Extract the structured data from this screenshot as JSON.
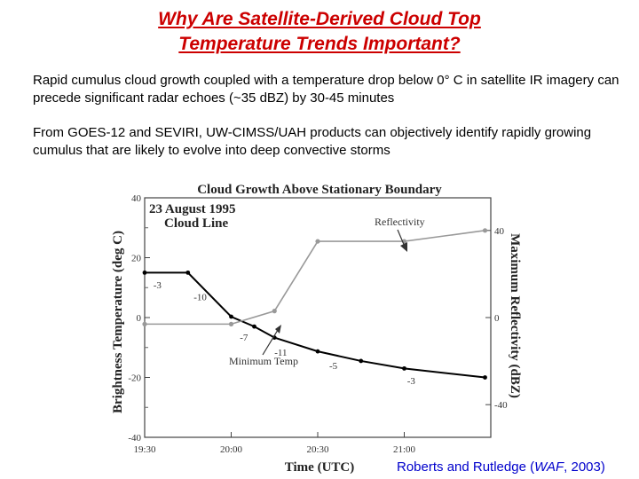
{
  "slide": {
    "title_line1": "Why Are Satellite-Derived Cloud Top",
    "title_line2": "Temperature Trends Important?",
    "paragraph1": "Rapid cumulus cloud growth coupled with a temperature drop below 0° C in satellite IR imagery can precede significant radar echoes (~35 dBZ) by 30-45 minutes",
    "paragraph2": "From GOES-12 and SEVIRI, UW-CIMSS/UAH products can objectively identify rapidly growing cumulus that are likely to evolve into deep convective storms",
    "credit_pre": "Roberts and Rutledge (",
    "credit_journal": "WAF",
    "credit_post": ", 2003)"
  },
  "chart_data": {
    "type": "line",
    "title": "Cloud Growth Above Stationary Boundary",
    "subtitle_date": "23 August 1995",
    "subtitle_case": "Cloud Line",
    "xlabel": "Time (UTC)",
    "ylabel_left": "Brightness Temperature (deg C)",
    "ylabel_right": "Maximum Reflectivity (dBZ)",
    "x_ticks": [
      "19:30",
      "20:00",
      "20:30",
      "21:00"
    ],
    "x_range": [
      "19:30",
      "21:30"
    ],
    "y_left_ticks": [
      40,
      20,
      0,
      -20,
      -40
    ],
    "y_left_range": [
      -40,
      40
    ],
    "y_right_ticks": [
      40,
      0,
      -40
    ],
    "y_right_range": [
      -55,
      55
    ],
    "series": [
      {
        "name": "Minimum Temp",
        "axis": "left",
        "color": "#000000",
        "x": [
          "19:30",
          "19:45",
          "20:00",
          "20:08",
          "20:15",
          "20:30",
          "20:45",
          "21:00",
          "21:28"
        ],
        "values": [
          15,
          15,
          0.3,
          -3,
          -6.7,
          -11.3,
          -14.5,
          -17,
          -20
        ]
      },
      {
        "name": "Reflectivity",
        "axis": "right",
        "color": "#999999",
        "x": [
          "19:30",
          "20:00",
          "20:15",
          "20:30",
          "21:00",
          "21:28"
        ],
        "values": [
          -3,
          -3,
          3,
          35,
          35,
          40
        ]
      }
    ],
    "point_labels": [
      {
        "text": "-3",
        "x": "19:33",
        "y": 11
      },
      {
        "text": "-10",
        "x": "19:47",
        "y": 7
      },
      {
        "text": "-7",
        "x": "20:03",
        "y": -6.5
      },
      {
        "text": "-11",
        "x": "20:15",
        "y": -11.5
      },
      {
        "text": "-5",
        "x": "20:34",
        "y": -16
      },
      {
        "text": "-3",
        "x": "21:01",
        "y": -21
      }
    ],
    "annotations": [
      {
        "text": "Reflectivity"
      },
      {
        "text": "Minimum Temp"
      }
    ]
  }
}
